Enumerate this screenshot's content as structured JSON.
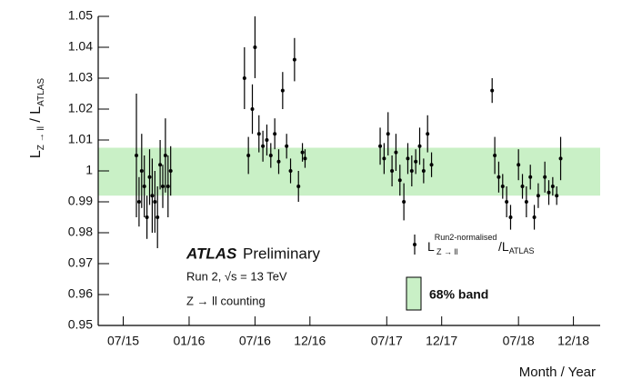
{
  "chart_data": {
    "type": "scatter",
    "ylabel": {
      "main": "L",
      "sub": "Z → ll",
      "sep": " / L",
      "sub2": "ATLAS"
    },
    "xlabel": "Month / Year",
    "annotations": {
      "atlas": "ATLAS",
      "preliminary": "Preliminary",
      "run": "Run 2, √s = 13 TeV",
      "process": "Z → ll counting"
    },
    "legend_label": {
      "main": "L",
      "sup": "Run2-normalised",
      "sub": "Z → ll",
      "tail": "/L",
      "tail_sub": "ATLAS"
    },
    "band": {
      "lo": 0.992,
      "hi": 1.0075,
      "color": "#c9f0c6",
      "label": "68% band"
    },
    "color": "#000000",
    "xlim": [
      2015.31,
      2019.12
    ],
    "xticks": [
      {
        "value": 2015.5,
        "label": "07/15"
      },
      {
        "value": 2016.0,
        "label": "01/16"
      },
      {
        "value": 2016.5,
        "label": "07/16"
      },
      {
        "value": 2016.917,
        "label": "12/16"
      },
      {
        "value": 2017.5,
        "label": "07/17"
      },
      {
        "value": 2017.917,
        "label": "12/17"
      },
      {
        "value": 2018.5,
        "label": "07/18"
      },
      {
        "value": 2018.917,
        "label": "12/18"
      }
    ],
    "ylim": [
      0.95,
      1.05
    ],
    "yticks": [
      0.95,
      0.96,
      0.97,
      0.98,
      0.99,
      1,
      1.01,
      1.02,
      1.03,
      1.04,
      1.05
    ],
    "x": [
      2015.6,
      2015.62,
      2015.64,
      2015.66,
      2015.68,
      2015.7,
      2015.72,
      2015.74,
      2015.76,
      2015.78,
      2015.8,
      2015.82,
      2015.84,
      2015.86,
      2016.42,
      2016.45,
      2016.48,
      2016.5,
      2016.53,
      2016.56,
      2016.59,
      2016.62,
      2016.65,
      2016.68,
      2016.71,
      2016.74,
      2016.77,
      2016.8,
      2016.83,
      2016.86,
      2016.88,
      2017.45,
      2017.48,
      2017.51,
      2017.54,
      2017.57,
      2017.6,
      2017.63,
      2017.66,
      2017.69,
      2017.72,
      2017.75,
      2017.78,
      2017.81,
      2017.84,
      2018.3,
      2018.32,
      2018.35,
      2018.38,
      2018.41,
      2018.44,
      2018.5,
      2018.53,
      2018.56,
      2018.59,
      2018.62,
      2018.65,
      2018.7,
      2018.73,
      2018.76,
      2018.79,
      2018.82
    ],
    "values": [
      1.005,
      0.99,
      1.0,
      0.995,
      0.985,
      0.998,
      0.992,
      0.99,
      0.985,
      1.002,
      0.995,
      1.005,
      0.995,
      1.0,
      1.03,
      1.005,
      1.02,
      1.04,
      1.012,
      1.008,
      1.01,
      1.005,
      1.012,
      1.003,
      1.026,
      1.008,
      1.0,
      1.036,
      0.995,
      1.006,
      1.004,
      1.008,
      1.004,
      1.012,
      1.0,
      1.006,
      0.997,
      0.99,
      1.004,
      1.0,
      1.003,
      1.008,
      1.0,
      1.012,
      1.002,
      1.026,
      1.005,
      0.998,
      0.995,
      0.99,
      0.985,
      1.002,
      0.995,
      0.99,
      0.998,
      0.985,
      0.992,
      0.998,
      0.993,
      0.995,
      0.992,
      1.004
    ],
    "errors": [
      0.02,
      0.008,
      0.012,
      0.01,
      0.007,
      0.009,
      0.012,
      0.01,
      0.01,
      0.008,
      0.007,
      0.012,
      0.01,
      0.008,
      0.01,
      0.006,
      0.008,
      0.01,
      0.006,
      0.005,
      0.005,
      0.004,
      0.005,
      0.004,
      0.006,
      0.004,
      0.004,
      0.007,
      0.005,
      0.003,
      0.003,
      0.006,
      0.005,
      0.007,
      0.005,
      0.006,
      0.005,
      0.006,
      0.005,
      0.005,
      0.004,
      0.006,
      0.004,
      0.006,
      0.004,
      0.004,
      0.006,
      0.005,
      0.004,
      0.005,
      0.004,
      0.005,
      0.004,
      0.005,
      0.004,
      0.004,
      0.004,
      0.005,
      0.004,
      0.003,
      0.003,
      0.007
    ]
  }
}
